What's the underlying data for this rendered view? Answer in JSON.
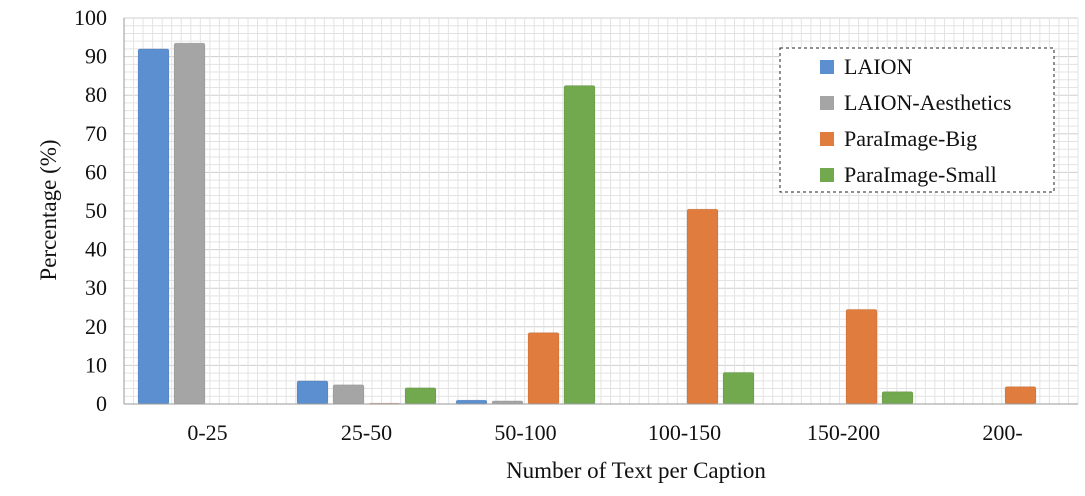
{
  "chart_data": {
    "type": "bar",
    "title": "",
    "xlabel": "Number of Text per Caption",
    "ylabel": "Percentage (%)",
    "ylim": [
      0,
      100
    ],
    "yticks": [
      0,
      10,
      20,
      30,
      40,
      50,
      60,
      70,
      80,
      90,
      100
    ],
    "grid": true,
    "legend_position": "top-right",
    "categories": [
      "0-25",
      "25-50",
      "50-100",
      "100-150",
      "150-200",
      "200-"
    ],
    "series": [
      {
        "name": "LAION",
        "color": "#5b8fd0",
        "values": [
          92,
          6,
          1,
          0,
          0,
          0
        ]
      },
      {
        "name": "LAION-Aesthetics",
        "color": "#a5a5a5",
        "values": [
          93.5,
          5,
          0.8,
          0,
          0,
          0
        ]
      },
      {
        "name": "ParaImage-Big",
        "color": "#e07c3e",
        "values": [
          0,
          0.2,
          18.5,
          50.5,
          24.5,
          4.5
        ]
      },
      {
        "name": "ParaImage-Small",
        "color": "#72a84e",
        "values": [
          0,
          4.2,
          82.5,
          8.2,
          3.2,
          0
        ]
      }
    ]
  }
}
